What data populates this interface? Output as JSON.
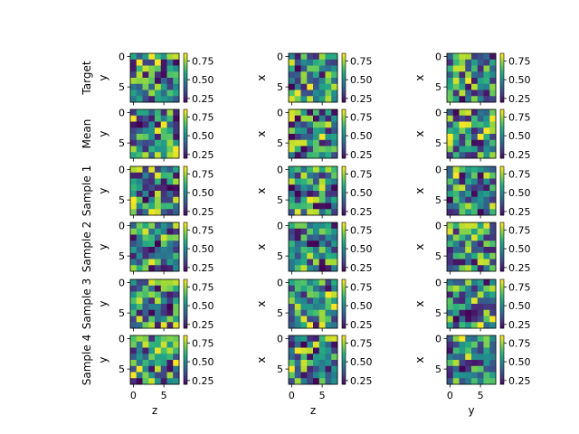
{
  "chart_data": {
    "type": "heatmap",
    "colormap": "viridis",
    "grid_size": 8,
    "value_range": [
      0.2,
      0.85
    ],
    "colorbar_ticks": [
      "0.25",
      "0.50",
      "0.75"
    ],
    "colorbar_tick_values": [
      0.25,
      0.5,
      0.75
    ],
    "row_labels": [
      "Target",
      "Mean",
      "Sample 1",
      "Sample 2",
      "Sample 3",
      "Sample 4"
    ],
    "columns": [
      {
        "xlabel": "z",
        "ylabel": "y"
      },
      {
        "xlabel": "z",
        "ylabel": "x"
      },
      {
        "xlabel": "y",
        "ylabel": "x"
      }
    ],
    "x_ticks": [
      "0",
      "5"
    ],
    "x_tick_values": [
      0,
      5
    ],
    "y_ticks": [
      "0",
      "5"
    ],
    "y_tick_values": [
      0,
      5
    ],
    "seed": 7
  }
}
